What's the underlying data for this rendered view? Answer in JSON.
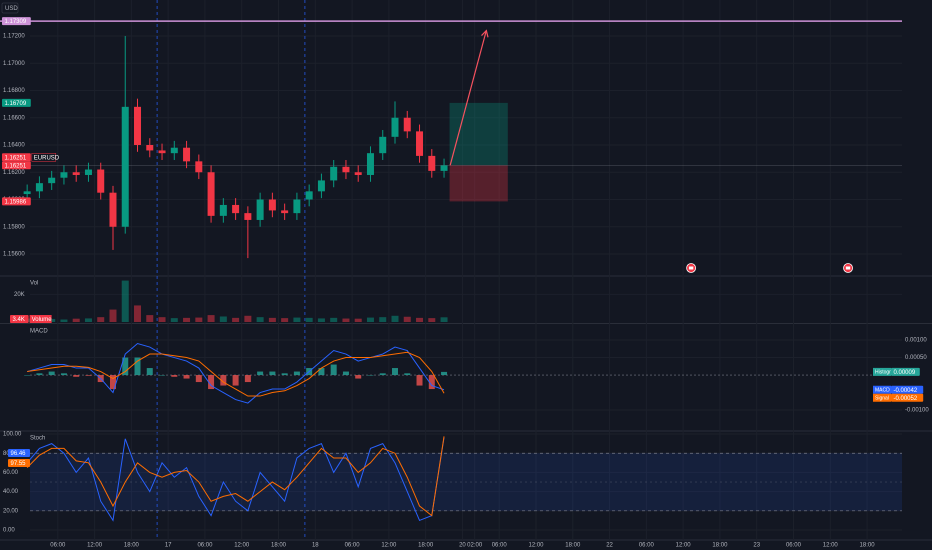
{
  "currency": "USD",
  "chart_data": [
    {
      "type": "candlestick",
      "symbol": "EURUSD",
      "x": [
        1,
        3,
        5,
        7,
        9,
        11,
        13,
        15,
        17,
        19,
        21,
        23,
        25,
        27,
        29,
        31,
        33,
        35,
        37,
        39,
        41,
        43,
        45,
        47,
        49,
        51,
        53,
        55,
        57,
        59,
        61,
        63,
        65,
        67,
        69
      ],
      "open": [
        1.1604,
        1.1606,
        1.1612,
        1.1616,
        1.162,
        1.1618,
        1.1622,
        1.1605,
        1.158,
        1.1668,
        1.164,
        1.1636,
        1.1634,
        1.1638,
        1.1628,
        1.162,
        1.1588,
        1.1596,
        1.159,
        1.1585,
        1.16,
        1.1592,
        1.159,
        1.16,
        1.1606,
        1.1614,
        1.1624,
        1.162,
        1.1618,
        1.1634,
        1.1646,
        1.166,
        1.165,
        1.1632,
        1.1621
      ],
      "high": [
        1.1611,
        1.1617,
        1.1621,
        1.1625,
        1.1625,
        1.1627,
        1.1627,
        1.161,
        1.172,
        1.1674,
        1.1645,
        1.1641,
        1.1643,
        1.1643,
        1.1633,
        1.1625,
        1.1601,
        1.1601,
        1.1595,
        1.1605,
        1.1605,
        1.1597,
        1.1605,
        1.1611,
        1.1619,
        1.1629,
        1.1629,
        1.1625,
        1.1639,
        1.1651,
        1.1672,
        1.1665,
        1.1655,
        1.1637,
        1.163
      ],
      "low": [
        1.1599,
        1.1601,
        1.1607,
        1.1611,
        1.1613,
        1.1613,
        1.16,
        1.1563,
        1.1575,
        1.1635,
        1.1631,
        1.1629,
        1.1629,
        1.1623,
        1.1615,
        1.1583,
        1.1583,
        1.1585,
        1.1557,
        1.158,
        1.1587,
        1.1585,
        1.1585,
        1.1595,
        1.1601,
        1.1609,
        1.1615,
        1.1613,
        1.1613,
        1.1629,
        1.1641,
        1.1645,
        1.1627,
        1.1616,
        1.1616
      ],
      "close": [
        1.1606,
        1.1612,
        1.1616,
        1.162,
        1.1618,
        1.1622,
        1.1605,
        1.158,
        1.1668,
        1.164,
        1.1636,
        1.1634,
        1.1638,
        1.1628,
        1.162,
        1.1588,
        1.1596,
        1.159,
        1.1585,
        1.16,
        1.1592,
        1.159,
        1.16,
        1.1606,
        1.1614,
        1.1624,
        1.162,
        1.1618,
        1.1634,
        1.1646,
        1.166,
        1.165,
        1.1632,
        1.1621,
        1.1625
      ],
      "up_color": "#089981",
      "down_color": "#f23645",
      "xlim": [
        -3.43,
        143.7
      ],
      "ylim": [
        1.15446,
        1.17464
      ],
      "yticks": [
        {
          "value": 1.156,
          "label": "1.15600"
        },
        {
          "value": 1.158,
          "label": "1.15800"
        },
        {
          "value": 1.16,
          "label": "1.16000"
        },
        {
          "value": 1.162,
          "label": "1.16200"
        },
        {
          "value": 1.164,
          "label": "1.16400"
        },
        {
          "value": 1.166,
          "label": "1.16600"
        },
        {
          "value": 1.168,
          "label": "1.16800"
        },
        {
          "value": 1.17,
          "label": "1.17000"
        },
        {
          "value": 1.172,
          "label": "1.17200"
        }
      ],
      "price_labels": [
        {
          "value": 1.17309,
          "color": "#ce93d8"
        },
        {
          "value": 1.16709,
          "color": "#089981"
        },
        {
          "value": 1.16251,
          "color": "#f23645",
          "tag": "EURUSD"
        },
        {
          "value": 1.16251,
          "color": "#f23645"
        },
        {
          "value": 1.15986,
          "color": "#f23645"
        }
      ],
      "hline": {
        "value": 1.17309,
        "color": "#ce93d8"
      },
      "position": {
        "x": [
          69.9,
          79.4
        ],
        "entry": 1.16251,
        "target": 1.16709,
        "stop": 1.15986
      },
      "arrow": {
        "x": [
          70,
          75.9
        ],
        "y": [
          1.16251,
          1.1724
        ],
        "color": "#f7525f"
      },
      "session_breaks": [
        22.2,
        46.3
      ],
      "events": [
        109.3,
        134.9
      ]
    },
    {
      "type": "bar",
      "title": "Vol",
      "ylim": [
        0,
        32600
      ],
      "yticks": [
        {
          "value": 20000,
          "label": "20K"
        }
      ],
      "series": [
        {
          "name": "Volume",
          "values": [
            2500,
            2000,
            2200,
            1800,
            2400,
            2600,
            3500,
            9000,
            30000,
            12000,
            5000,
            3500,
            2800,
            3000,
            3200,
            5000,
            4000,
            3000,
            4500,
            3500,
            3000,
            2800,
            3200,
            3000,
            2600,
            3000,
            2500,
            2400,
            3200,
            3500,
            4500,
            3800,
            3000,
            2800,
            3400
          ],
          "value_labels": [
            null,
            null,
            null,
            null,
            null,
            null,
            null,
            null,
            null,
            null,
            null,
            null,
            null,
            null,
            null,
            null,
            null,
            null,
            null,
            null,
            null,
            null,
            null,
            null,
            null,
            null,
            null,
            null,
            null,
            null,
            null,
            null,
            null,
            null,
            "3.4K"
          ]
        }
      ]
    },
    {
      "type": "macd",
      "title": "MACD",
      "ylim": [
        -0.00157,
        0.00143
      ],
      "yticks": [
        {
          "value": 0.001,
          "label": "0.00100"
        },
        {
          "value": 0.0005,
          "label": "0.00050"
        },
        {
          "value": -0.001,
          "label": "-0.00100"
        }
      ],
      "series": [
        {
          "name": "Histogram",
          "color": "#26a69a",
          "neg_color": "#ef5350",
          "values": [
            0,
            5e-05,
            0.0001,
            5e-05,
            -5e-05,
            -2e-05,
            -0.0002,
            -0.0004,
            0.0005,
            0.0005,
            0.0002,
            0,
            -5e-05,
            -0.0001,
            -0.0002,
            -0.0004,
            -0.0003,
            -0.0003,
            -0.0002,
            0.0001,
            0.0001,
            5e-05,
            0.0001,
            0.0002,
            0.0002,
            0.0003,
            0.0001,
            -0.0001,
            0,
            5e-05,
            0.0002,
            5e-05,
            -0.0003,
            -0.0004,
            9e-05
          ]
        },
        {
          "name": "MACD",
          "color": "#2962ff",
          "values": [
            0.0001,
            0.0002,
            0.0003,
            0.0003,
            0.0002,
            0.0002,
            -0.0001,
            -0.0005,
            0.0006,
            0.0009,
            0.0008,
            0.0006,
            0.0005,
            0.0004,
            0.0002,
            -0.0003,
            -0.0005,
            -0.0007,
            -0.0008,
            -0.0005,
            -0.0004,
            -0.0004,
            -0.0002,
            0.0001,
            0.0004,
            0.0007,
            0.0006,
            0.0004,
            0.0005,
            0.0006,
            0.0008,
            0.0007,
            0.0002,
            -0.0003,
            -0.00042
          ]
        },
        {
          "name": "Signal",
          "color": "#ff6d00",
          "values": [
            0.0001,
            0.00015,
            0.0002,
            0.00025,
            0.00025,
            0.00022,
            0.0001,
            -0.0001,
            0.0001,
            0.0004,
            0.0006,
            0.0006,
            0.00055,
            0.0005,
            0.0004,
            0.0001,
            -0.0002,
            -0.0004,
            -0.0006,
            -0.0006,
            -0.0005,
            -0.00045,
            -0.0003,
            -0.0001,
            0.0002,
            0.0004,
            0.0005,
            0.0005,
            0.0005,
            0.00055,
            0.0006,
            0.00065,
            0.0005,
            0.0001,
            -0.00052
          ]
        }
      ]
    },
    {
      "type": "stochastic",
      "title": "Stoch",
      "ylim": [
        -10.4,
        102.1
      ],
      "yticks": [
        {
          "value": 0,
          "label": "0.00"
        },
        {
          "value": 20,
          "label": "20.00"
        },
        {
          "value": 40,
          "label": "40.00"
        },
        {
          "value": 60,
          "label": "60.00"
        },
        {
          "value": 80,
          "label": "80.00"
        },
        {
          "value": 100,
          "label": "100.00"
        }
      ],
      "bands": [
        20,
        80
      ],
      "midline": 50,
      "band_color": "#2962ff",
      "series": [
        {
          "color": "#2962ff",
          "values": [
            70,
            85,
            90,
            80,
            60,
            75,
            30,
            10,
            95,
            60,
            40,
            70,
            55,
            65,
            35,
            15,
            50,
            30,
            20,
            60,
            45,
            30,
            75,
            85,
            90,
            60,
            80,
            45,
            85,
            90,
            70,
            40,
            10,
            15,
            96.46
          ]
        },
        {
          "color": "#ff6d00",
          "values": [
            65,
            78,
            85,
            85,
            72,
            70,
            50,
            25,
            50,
            70,
            60,
            55,
            60,
            62,
            50,
            30,
            35,
            38,
            30,
            40,
            50,
            42,
            55,
            70,
            85,
            75,
            75,
            60,
            70,
            85,
            80,
            55,
            25,
            15,
            97.55
          ]
        }
      ],
      "xticks": [
        {
          "value": 6,
          "label": "06:00"
        },
        {
          "value": 12,
          "label": "12:00"
        },
        {
          "value": 18,
          "label": "18:00"
        },
        {
          "value": 24,
          "label": "17"
        },
        {
          "value": 30,
          "label": "06:00"
        },
        {
          "value": 36,
          "label": "12:00"
        },
        {
          "value": 42,
          "label": "18:00"
        },
        {
          "value": 48,
          "label": "18"
        },
        {
          "value": 54,
          "label": "06:00"
        },
        {
          "value": 60,
          "label": "12:00"
        },
        {
          "value": 66,
          "label": "18:00"
        },
        {
          "value": 72,
          "label": "20"
        },
        {
          "value": 74,
          "label": "02:00"
        },
        {
          "value": 78,
          "label": "06:00"
        },
        {
          "value": 84,
          "label": "12:00"
        },
        {
          "value": 90,
          "label": "18:00"
        },
        {
          "value": 96,
          "label": "22"
        },
        {
          "value": 102,
          "label": "06:00"
        },
        {
          "value": 108,
          "label": "12:00"
        },
        {
          "value": 114,
          "label": "18:00"
        },
        {
          "value": 120,
          "label": "23"
        },
        {
          "value": 126,
          "label": "06:00"
        },
        {
          "value": 132,
          "label": "12:00"
        },
        {
          "value": 138,
          "label": "18:00"
        }
      ]
    }
  ]
}
